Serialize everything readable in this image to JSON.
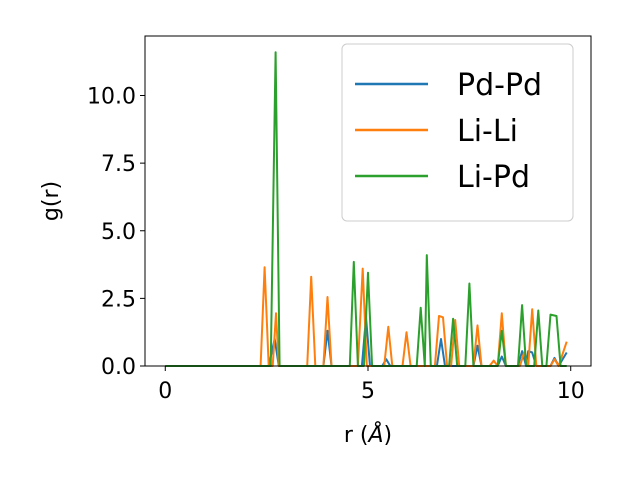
{
  "chart_data": {
    "type": "line",
    "xlabel": "r (",
    "xlabel_unit": "Å",
    "xlabel_close": ")",
    "ylabel": "g(r)",
    "xlim": [
      -0.5,
      10.5
    ],
    "ylim": [
      0,
      12.2
    ],
    "xticks": [
      0,
      5,
      10
    ],
    "xtick_labels": [
      "0",
      "5",
      "10"
    ],
    "yticks": [
      0,
      2.5,
      5,
      7.5,
      10
    ],
    "ytick_labels": [
      "0.0",
      "2.5",
      "5.0",
      "7.5",
      "10.0"
    ],
    "grid": false,
    "legend_position": "top-right",
    "series": [
      {
        "name": "Pd-Pd",
        "color": "#1f77b4",
        "points": [
          [
            0,
            0
          ],
          [
            2.55,
            0
          ],
          [
            2.7,
            1.0
          ],
          [
            2.8,
            0
          ],
          [
            3.9,
            0
          ],
          [
            4.0,
            1.3
          ],
          [
            4.1,
            0
          ],
          [
            4.85,
            0
          ],
          [
            4.95,
            1.8
          ],
          [
            5.05,
            0
          ],
          [
            5.35,
            0
          ],
          [
            5.45,
            0.25
          ],
          [
            5.55,
            0
          ],
          [
            6.7,
            0
          ],
          [
            6.8,
            1.0
          ],
          [
            6.9,
            0
          ],
          [
            7.6,
            0
          ],
          [
            7.7,
            0.75
          ],
          [
            7.8,
            0
          ],
          [
            8.2,
            0
          ],
          [
            8.3,
            0.35
          ],
          [
            8.4,
            0
          ],
          [
            8.7,
            0
          ],
          [
            8.8,
            0.55
          ],
          [
            8.9,
            0
          ],
          [
            8.95,
            0.55
          ],
          [
            9.05,
            0.5
          ],
          [
            9.15,
            0
          ],
          [
            9.5,
            0
          ],
          [
            9.6,
            0.3
          ],
          [
            9.7,
            0
          ],
          [
            9.9,
            0.5
          ]
        ]
      },
      {
        "name": "Li-Li",
        "color": "#ff7f0e",
        "points": [
          [
            0,
            0
          ],
          [
            2.35,
            0
          ],
          [
            2.45,
            3.65
          ],
          [
            2.55,
            0
          ],
          [
            2.65,
            0
          ],
          [
            2.73,
            1.95
          ],
          [
            2.8,
            0
          ],
          [
            3.5,
            0
          ],
          [
            3.6,
            3.3
          ],
          [
            3.7,
            0
          ],
          [
            3.9,
            0
          ],
          [
            4.0,
            2.55
          ],
          [
            4.1,
            0
          ],
          [
            4.75,
            0
          ],
          [
            4.87,
            3.6
          ],
          [
            4.97,
            0
          ],
          [
            5.4,
            0
          ],
          [
            5.5,
            1.45
          ],
          [
            5.6,
            0
          ],
          [
            5.85,
            0
          ],
          [
            5.95,
            1.25
          ],
          [
            6.05,
            0
          ],
          [
            6.65,
            0
          ],
          [
            6.75,
            1.85
          ],
          [
            6.85,
            1.8
          ],
          [
            6.95,
            0
          ],
          [
            7.05,
            0
          ],
          [
            7.15,
            1.7
          ],
          [
            7.25,
            0
          ],
          [
            7.6,
            0
          ],
          [
            7.7,
            1.5
          ],
          [
            7.8,
            0
          ],
          [
            8.0,
            0
          ],
          [
            8.1,
            0.2
          ],
          [
            8.2,
            0
          ],
          [
            8.3,
            1.95
          ],
          [
            8.4,
            0
          ],
          [
            8.75,
            0
          ],
          [
            8.85,
            0.5
          ],
          [
            8.95,
            0
          ],
          [
            9.05,
            2.1
          ],
          [
            9.15,
            0
          ],
          [
            9.5,
            0
          ],
          [
            9.6,
            0.25
          ],
          [
            9.7,
            0
          ],
          [
            9.9,
            0.9
          ]
        ]
      },
      {
        "name": "Li-Pd",
        "color": "#2ca02c",
        "points": [
          [
            0,
            0
          ],
          [
            2.6,
            0
          ],
          [
            2.72,
            11.6
          ],
          [
            2.82,
            0
          ],
          [
            4.55,
            0
          ],
          [
            4.65,
            3.85
          ],
          [
            4.75,
            0
          ],
          [
            4.9,
            0
          ],
          [
            5.0,
            3.45
          ],
          [
            5.1,
            0
          ],
          [
            6.2,
            0
          ],
          [
            6.3,
            2.15
          ],
          [
            6.4,
            0
          ],
          [
            6.45,
            4.1
          ],
          [
            6.55,
            0
          ],
          [
            7.0,
            0
          ],
          [
            7.1,
            1.75
          ],
          [
            7.2,
            0
          ],
          [
            7.4,
            0
          ],
          [
            7.5,
            3.05
          ],
          [
            7.6,
            0
          ],
          [
            8.2,
            0
          ],
          [
            8.3,
            1.3
          ],
          [
            8.4,
            0
          ],
          [
            8.7,
            0
          ],
          [
            8.8,
            2.25
          ],
          [
            8.9,
            0
          ],
          [
            9.1,
            0
          ],
          [
            9.2,
            2.05
          ],
          [
            9.3,
            0
          ],
          [
            9.4,
            0
          ],
          [
            9.5,
            1.9
          ],
          [
            9.65,
            1.85
          ],
          [
            9.75,
            0
          ],
          [
            9.9,
            0
          ]
        ]
      }
    ]
  }
}
